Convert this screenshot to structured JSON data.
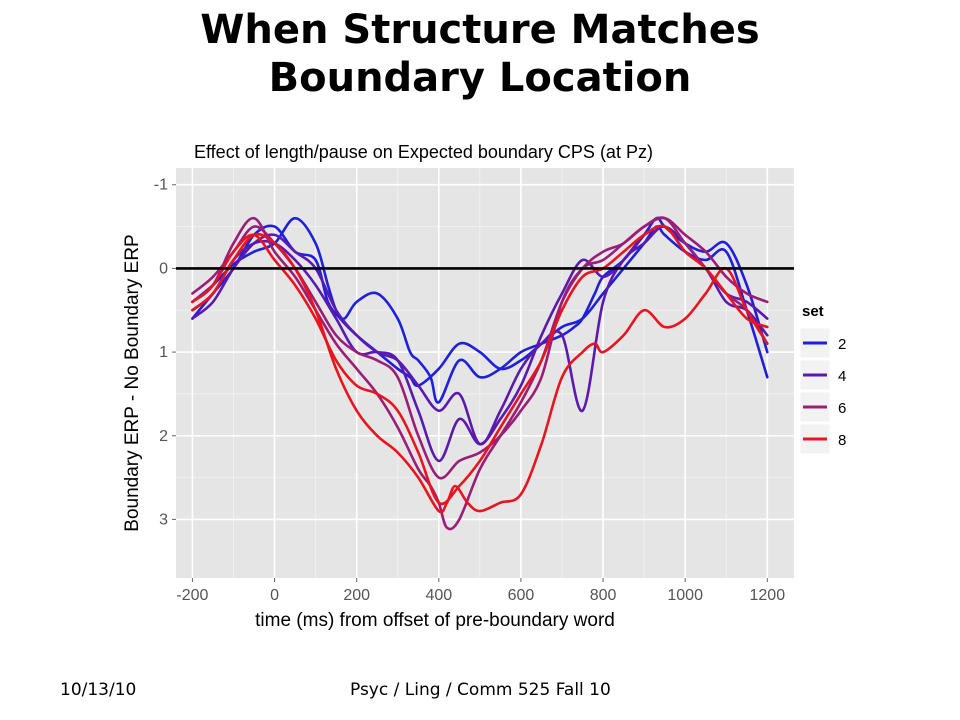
{
  "slide": {
    "title_line1": "When Structure Matches",
    "title_line2": "Boundary Location"
  },
  "footer": {
    "date": "10/13/10",
    "course": "Psyc / Ling / Comm 525 Fall 10"
  },
  "colors": {
    "panel_bg": "#e5e5e5",
    "grid_major": "#ffffff",
    "zero_line": "#000000"
  },
  "chart_data": {
    "type": "line",
    "title": "Effect of length/pause on Expected boundary CPS (at Pz)",
    "xlabel": "time (ms) from offset of pre-boundary word",
    "ylabel": "Boundary ERP - No Boundary ERP",
    "xlim": [
      -240,
      1265
    ],
    "ylim": [
      3.7,
      -1.2
    ],
    "y_reversed": true,
    "x_ticks": [
      -200,
      0,
      200,
      400,
      600,
      800,
      1000,
      1200
    ],
    "y_ticks": [
      -1,
      0,
      1,
      2,
      3
    ],
    "hline": 0,
    "grid": true,
    "legend": {
      "title": "set",
      "position": "right",
      "entries": [
        "2",
        "4",
        "6",
        "8"
      ]
    },
    "series_colors": [
      "#1f1fdc",
      "#5a1ab0",
      "#9a1e78",
      "#e8141e"
    ],
    "series": [
      {
        "set": "2",
        "x": [
          -200,
          -150,
          -100,
          -50,
          0,
          50,
          100,
          130,
          150,
          170,
          200,
          250,
          300,
          330,
          350,
          380,
          400,
          450,
          500,
          550,
          600,
          650,
          700,
          730,
          750,
          780,
          800,
          850,
          900,
          930,
          950,
          1000,
          1050,
          1100,
          1150,
          1200
        ],
        "y": [
          0.4,
          0.2,
          -0.05,
          -0.2,
          -0.3,
          -0.6,
          -0.3,
          0.2,
          0.5,
          0.6,
          0.4,
          0.3,
          0.6,
          1.0,
          1.1,
          1.3,
          1.6,
          1.1,
          1.3,
          1.2,
          1.0,
          0.9,
          0.8,
          0.7,
          0.6,
          0.3,
          0.1,
          -0.1,
          -0.4,
          -0.6,
          -0.5,
          -0.3,
          -0.2,
          -0.3,
          0.2,
          1.0
        ]
      },
      {
        "set": "2",
        "x": [
          -200,
          -150,
          -100,
          -50,
          0,
          50,
          100,
          130,
          160,
          200,
          250,
          300,
          330,
          350,
          400,
          450,
          500,
          550,
          600,
          650,
          700,
          750,
          800,
          850,
          900,
          930,
          950,
          1000,
          1050,
          1100,
          1150,
          1200
        ],
        "y": [
          0.6,
          0.3,
          0.0,
          -0.4,
          -0.5,
          -0.2,
          -0.1,
          0.4,
          0.6,
          0.8,
          1.0,
          1.2,
          1.3,
          1.4,
          1.2,
          0.9,
          1.0,
          1.2,
          1.1,
          0.9,
          0.7,
          0.6,
          0.3,
          0.0,
          -0.3,
          -0.5,
          -0.4,
          -0.2,
          -0.1,
          -0.2,
          0.5,
          1.3
        ]
      },
      {
        "set": "4",
        "x": [
          -200,
          -150,
          -100,
          -50,
          0,
          50,
          100,
          150,
          200,
          250,
          300,
          350,
          400,
          450,
          500,
          550,
          600,
          650,
          700,
          750,
          800,
          850,
          900,
          950,
          1000,
          1050,
          1100,
          1150,
          1200
        ],
        "y": [
          0.6,
          0.4,
          0.0,
          -0.3,
          -0.4,
          -0.2,
          0.0,
          0.5,
          0.8,
          1.0,
          1.1,
          1.4,
          1.7,
          1.5,
          2.1,
          1.7,
          1.2,
          0.9,
          0.8,
          1.7,
          0.4,
          -0.1,
          -0.3,
          -0.5,
          -0.2,
          0.0,
          0.4,
          0.5,
          0.8
        ]
      },
      {
        "set": "4",
        "x": [
          -200,
          -150,
          -100,
          -50,
          0,
          50,
          100,
          150,
          200,
          250,
          300,
          350,
          400,
          450,
          500,
          550,
          600,
          650,
          700,
          750,
          800,
          850,
          900,
          950,
          1000,
          1050,
          1100,
          1150,
          1200
        ],
        "y": [
          0.5,
          0.3,
          -0.1,
          -0.3,
          -0.3,
          -0.1,
          0.2,
          0.6,
          1.0,
          1.0,
          1.1,
          1.7,
          2.3,
          1.8,
          2.1,
          1.8,
          1.4,
          0.8,
          0.3,
          -0.1,
          0.1,
          -0.1,
          -0.4,
          -0.5,
          -0.3,
          0.0,
          0.3,
          0.4,
          0.6
        ]
      },
      {
        "set": "6",
        "x": [
          -200,
          -150,
          -100,
          -50,
          0,
          50,
          100,
          150,
          200,
          250,
          300,
          350,
          380,
          400,
          420,
          450,
          500,
          550,
          600,
          650,
          700,
          750,
          800,
          850,
          900,
          950,
          1000,
          1050,
          1100,
          1150,
          1200
        ],
        "y": [
          0.4,
          0.2,
          -0.3,
          -0.6,
          -0.2,
          0.1,
          0.5,
          0.9,
          1.2,
          1.5,
          1.9,
          2.4,
          2.6,
          2.8,
          3.1,
          3.0,
          2.4,
          2.0,
          1.6,
          1.1,
          0.4,
          0.0,
          -0.2,
          -0.3,
          -0.5,
          -0.6,
          -0.4,
          -0.2,
          0.1,
          0.3,
          0.4
        ]
      },
      {
        "set": "6",
        "x": [
          -200,
          -150,
          -100,
          -50,
          0,
          50,
          100,
          150,
          200,
          250,
          300,
          350,
          400,
          450,
          500,
          550,
          600,
          650,
          700,
          750,
          800,
          850,
          900,
          950,
          1000,
          1050,
          1100,
          1150,
          1200
        ],
        "y": [
          0.3,
          0.1,
          -0.2,
          -0.5,
          -0.3,
          0.0,
          0.4,
          0.8,
          1.0,
          1.1,
          1.3,
          2.0,
          2.5,
          2.3,
          2.2,
          2.0,
          1.7,
          1.3,
          0.4,
          0.0,
          -0.1,
          -0.3,
          -0.5,
          -0.6,
          -0.3,
          0.0,
          0.3,
          0.5,
          0.9
        ]
      },
      {
        "set": "8",
        "x": [
          -200,
          -150,
          -100,
          -50,
          0,
          50,
          100,
          150,
          200,
          250,
          300,
          350,
          400,
          420,
          440,
          470,
          500,
          550,
          600,
          650,
          700,
          750,
          780,
          800,
          850,
          900,
          950,
          1000,
          1050,
          1100,
          1150,
          1200
        ],
        "y": [
          0.5,
          0.3,
          -0.1,
          -0.4,
          -0.3,
          0.0,
          0.5,
          1.2,
          1.7,
          2.0,
          2.2,
          2.5,
          2.9,
          2.8,
          2.6,
          2.8,
          2.9,
          2.8,
          2.7,
          2.1,
          1.3,
          1.0,
          0.9,
          1.0,
          0.8,
          0.5,
          0.7,
          0.6,
          0.3,
          0.0,
          0.5,
          0.9
        ]
      },
      {
        "set": "8",
        "x": [
          -200,
          -150,
          -100,
          -50,
          0,
          50,
          100,
          150,
          200,
          250,
          300,
          350,
          400,
          450,
          500,
          550,
          600,
          650,
          700,
          750,
          800,
          850,
          900,
          950,
          1000,
          1050,
          1100,
          1150,
          1200
        ],
        "y": [
          0.4,
          0.2,
          -0.2,
          -0.4,
          -0.1,
          0.2,
          0.6,
          1.1,
          1.4,
          1.5,
          1.7,
          2.2,
          2.8,
          2.6,
          2.3,
          1.9,
          1.5,
          1.1,
          0.5,
          0.1,
          0.0,
          -0.2,
          -0.4,
          -0.5,
          -0.2,
          0.0,
          0.3,
          0.6,
          0.7
        ]
      }
    ]
  }
}
